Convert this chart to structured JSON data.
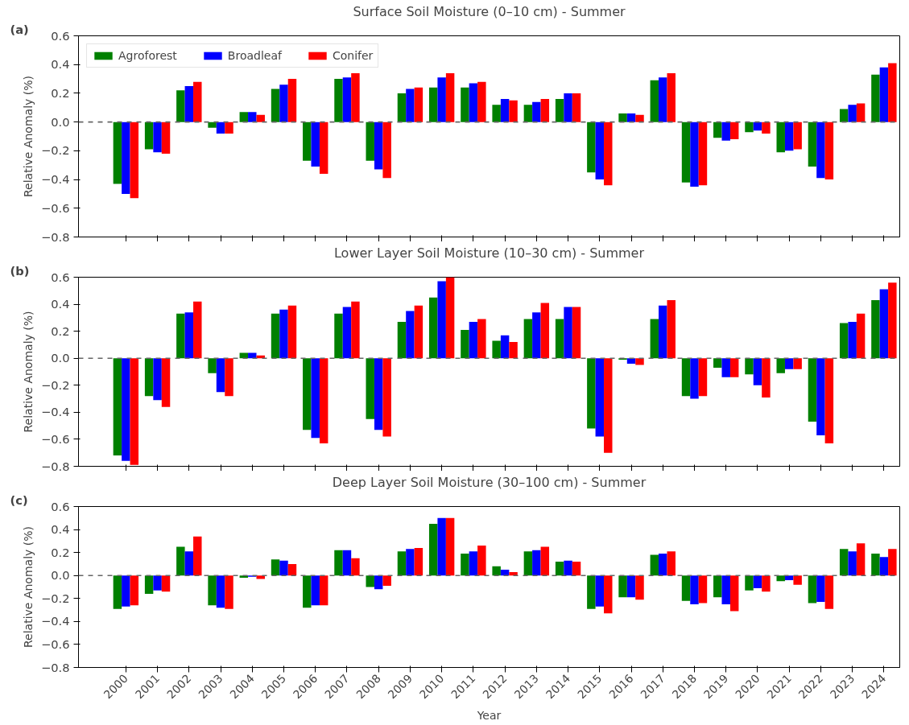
{
  "chart_data": [
    {
      "type": "bar",
      "title": "Surface Soil Moisture (0–10 cm) - Summer",
      "ylabel": "Relative Anomaly (%)",
      "annotations": [
        "(a)"
      ],
      "categories": [
        "2000",
        "2001",
        "2002",
        "2003",
        "2004",
        "2005",
        "2006",
        "2007",
        "2008",
        "2009",
        "2010",
        "2011",
        "2012",
        "2013",
        "2014",
        "2015",
        "2016",
        "2017",
        "2018",
        "2019",
        "2020",
        "2021",
        "2022",
        "2023",
        "2024"
      ],
      "series": [
        {
          "name": "Agroforest",
          "color": "#008000",
          "values": [
            -0.43,
            -0.19,
            0.22,
            -0.04,
            0.07,
            0.23,
            -0.27,
            0.3,
            -0.27,
            0.2,
            0.24,
            0.24,
            0.12,
            0.12,
            0.16,
            -0.35,
            0.06,
            0.29,
            -0.42,
            -0.11,
            -0.07,
            -0.21,
            -0.31,
            0.09,
            0.33
          ]
        },
        {
          "name": "Broadleaf",
          "color": "#0000ff",
          "values": [
            -0.5,
            -0.21,
            0.25,
            -0.08,
            0.07,
            0.26,
            -0.31,
            0.31,
            -0.33,
            0.23,
            0.31,
            0.27,
            0.16,
            0.14,
            0.2,
            -0.4,
            0.06,
            0.31,
            -0.45,
            -0.13,
            -0.06,
            -0.2,
            -0.39,
            0.12,
            0.38
          ]
        },
        {
          "name": "Conifer",
          "color": "#ff0000",
          "values": [
            -0.53,
            -0.22,
            0.28,
            -0.08,
            0.05,
            0.3,
            -0.36,
            0.34,
            -0.39,
            0.24,
            0.34,
            0.28,
            0.15,
            0.16,
            0.2,
            -0.44,
            0.05,
            0.34,
            -0.44,
            -0.12,
            -0.08,
            -0.19,
            -0.4,
            0.13,
            0.41
          ]
        }
      ],
      "ylim": [
        -0.8,
        0.6
      ],
      "yticks": [
        {
          "value": -0.8,
          "label": "−0.8"
        },
        {
          "value": -0.6,
          "label": "−0.6"
        },
        {
          "value": -0.4,
          "label": "−0.4"
        },
        {
          "value": -0.2,
          "label": "−0.2"
        },
        {
          "value": 0,
          "label": "0.0"
        },
        {
          "value": 0.2,
          "label": "0.2"
        },
        {
          "value": 0.4,
          "label": "0.4"
        },
        {
          "value": 0.6,
          "label": "0.6"
        }
      ],
      "ref_lines": [
        {
          "axis": "y",
          "value": 0,
          "color": "#666666",
          "line_style": "dashed"
        }
      ],
      "legend": "top left",
      "tick_labels": "y"
    },
    {
      "type": "bar",
      "title": "Lower Layer Soil Moisture (10–30 cm) - Summer",
      "ylabel": "Relative Anomaly (%)",
      "annotations": [
        "(b)"
      ],
      "categories": [
        "2000",
        "2001",
        "2002",
        "2003",
        "2004",
        "2005",
        "2006",
        "2007",
        "2008",
        "2009",
        "2010",
        "2011",
        "2012",
        "2013",
        "2014",
        "2015",
        "2016",
        "2017",
        "2018",
        "2019",
        "2020",
        "2021",
        "2022",
        "2023",
        "2024"
      ],
      "series": [
        {
          "color": "#008000",
          "values": [
            -0.72,
            -0.28,
            0.33,
            -0.11,
            0.04,
            0.33,
            -0.53,
            0.33,
            -0.45,
            0.27,
            0.45,
            0.21,
            0.13,
            0.29,
            0.29,
            -0.52,
            -0.01,
            0.29,
            -0.28,
            -0.07,
            -0.12,
            -0.11,
            -0.47,
            0.26,
            0.43
          ]
        },
        {
          "color": "#0000ff",
          "values": [
            -0.76,
            -0.31,
            0.34,
            -0.25,
            0.04,
            0.36,
            -0.59,
            0.38,
            -0.53,
            0.35,
            0.57,
            0.27,
            0.17,
            0.34,
            0.38,
            -0.58,
            -0.04,
            0.39,
            -0.3,
            -0.14,
            -0.2,
            -0.08,
            -0.57,
            0.27,
            0.51
          ]
        },
        {
          "color": "#ff0000",
          "values": [
            -0.79,
            -0.36,
            0.42,
            -0.28,
            0.02,
            0.39,
            -0.63,
            0.42,
            -0.58,
            0.39,
            0.6,
            0.29,
            0.12,
            0.41,
            0.38,
            -0.7,
            -0.05,
            0.43,
            -0.28,
            -0.14,
            -0.29,
            -0.08,
            -0.63,
            0.33,
            0.56
          ]
        }
      ],
      "ylim": [
        -0.8,
        0.6
      ],
      "yticks": [
        {
          "value": -0.8,
          "label": "−0.8"
        },
        {
          "value": -0.6,
          "label": "−0.6"
        },
        {
          "value": -0.4,
          "label": "−0.4"
        },
        {
          "value": -0.2,
          "label": "−0.2"
        },
        {
          "value": 0,
          "label": "0.0"
        },
        {
          "value": 0.2,
          "label": "0.2"
        },
        {
          "value": 0.4,
          "label": "0.4"
        },
        {
          "value": 0.6,
          "label": "0.6"
        }
      ],
      "ref_lines": [
        {
          "axis": "y",
          "value": 0,
          "color": "#666666",
          "line_style": "dashed"
        }
      ],
      "tick_labels": "y"
    },
    {
      "type": "bar",
      "title": "Deep Layer Soil Moisture (30–100 cm) - Summer",
      "xlabel": "Year",
      "ylabel": "Relative Anomaly (%)",
      "annotations": [
        "(c)"
      ],
      "categories": [
        "2000",
        "2001",
        "2002",
        "2003",
        "2004",
        "2005",
        "2006",
        "2007",
        "2008",
        "2009",
        "2010",
        "2011",
        "2012",
        "2013",
        "2014",
        "2015",
        "2016",
        "2017",
        "2018",
        "2019",
        "2020",
        "2021",
        "2022",
        "2023",
        "2024"
      ],
      "series": [
        {
          "color": "#008000",
          "values": [
            -0.29,
            -0.16,
            0.25,
            -0.26,
            -0.02,
            0.14,
            -0.28,
            0.22,
            -0.1,
            0.21,
            0.45,
            0.19,
            0.08,
            0.21,
            0.12,
            -0.29,
            -0.19,
            0.18,
            -0.22,
            -0.19,
            -0.13,
            -0.05,
            -0.24,
            0.23,
            0.19
          ]
        },
        {
          "color": "#0000ff",
          "values": [
            -0.27,
            -0.13,
            0.21,
            -0.28,
            -0.01,
            0.13,
            -0.26,
            0.22,
            -0.12,
            0.23,
            0.5,
            0.21,
            0.05,
            0.22,
            0.13,
            -0.27,
            -0.19,
            0.19,
            -0.25,
            -0.25,
            -0.11,
            -0.04,
            -0.23,
            0.21,
            0.16
          ]
        },
        {
          "color": "#ff0000",
          "values": [
            -0.26,
            -0.14,
            0.34,
            -0.29,
            -0.03,
            0.1,
            -0.26,
            0.15,
            -0.09,
            0.24,
            0.5,
            0.26,
            0.03,
            0.25,
            0.12,
            -0.33,
            -0.21,
            0.21,
            -0.24,
            -0.31,
            -0.14,
            -0.08,
            -0.29,
            0.28,
            0.23
          ]
        }
      ],
      "ylim": [
        -0.8,
        0.6
      ],
      "yticks": [
        {
          "value": -0.8,
          "label": "−0.8"
        },
        {
          "value": -0.6,
          "label": "−0.6"
        },
        {
          "value": -0.4,
          "label": "−0.4"
        },
        {
          "value": -0.2,
          "label": "−0.2"
        },
        {
          "value": 0,
          "label": "0.0"
        },
        {
          "value": 0.2,
          "label": "0.2"
        },
        {
          "value": 0.4,
          "label": "0.4"
        },
        {
          "value": 0.6,
          "label": "0.6"
        }
      ],
      "ref_lines": [
        {
          "axis": "y",
          "value": 0,
          "color": "#666666",
          "line_style": "dashed"
        }
      ]
    }
  ]
}
